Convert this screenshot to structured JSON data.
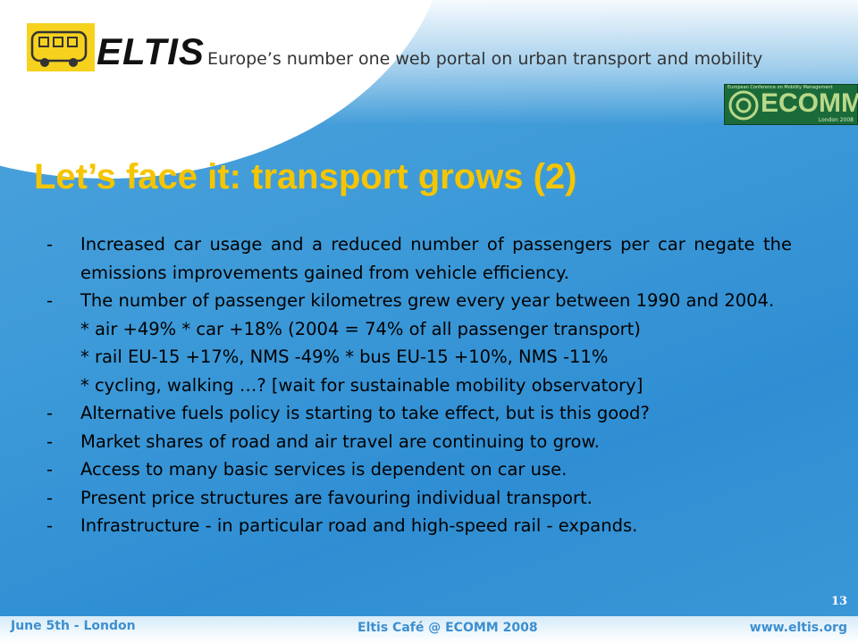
{
  "header": {
    "logo_text": "ELTIS",
    "tagline": "Europe’s number one web portal on urban transport and mobility",
    "badge": "ECOMM",
    "badge_caption": "European Conference on Mobility Management",
    "badge_sub": "London 2008"
  },
  "title": "Let’s face it: transport grows (2)",
  "bullet": "-",
  "items": [
    {
      "text": "Increased car usage and a reduced number of passengers per car negate the emissions improvements gained from vehicle efficiency."
    },
    {
      "text": "The number of passenger kilometres grew every year between 1990 and 2004.",
      "sub": [
        "* air +49% * car +18% (2004 = 74% of all passenger transport)",
        "* rail EU-15 +17%, NMS -49% * bus EU-15 +10%, NMS -11%",
        "* cycling, walking …?  [wait for sustainable mobility observatory]"
      ]
    },
    {
      "text": "Alternative fuels policy is starting to take effect, but is this good?"
    },
    {
      "text": "Market shares of road and air travel are continuing to grow."
    },
    {
      "text": "Access to many basic services is dependent on car use."
    },
    {
      "text": "Present price structures are favouring individual transport."
    },
    {
      "text": "Infrastructure - in particular road and high-speed rail - expands."
    }
  ],
  "page_number": "13",
  "footer": {
    "left": "June 5th - London",
    "center": "Eltis Café @ ECOMM 2008",
    "right": "www.eltis.org"
  }
}
